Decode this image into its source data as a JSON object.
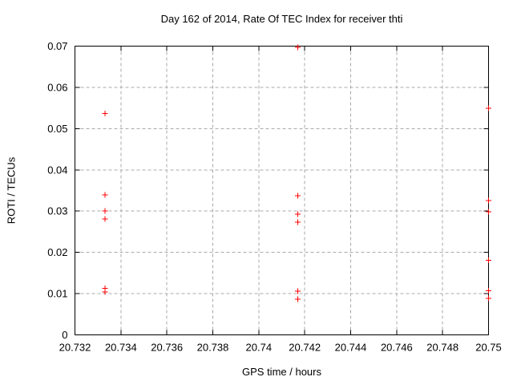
{
  "chart_data": {
    "type": "scatter",
    "title": "Day 162 of 2014, Rate Of TEC Index for receiver thti",
    "xlabel": "GPS time / hours",
    "ylabel": "ROTI / TECUs",
    "xlim": [
      20.732,
      20.75
    ],
    "ylim": [
      0,
      0.07
    ],
    "xticks": {
      "values": [
        20.732,
        20.734,
        20.736,
        20.738,
        20.74,
        20.742,
        20.744,
        20.746,
        20.748,
        20.75
      ],
      "labels": [
        "20.732",
        "20.734",
        "20.736",
        "20.738",
        "20.74",
        "20.742",
        "20.744",
        "20.746",
        "20.748",
        "20.75"
      ]
    },
    "yticks": {
      "values": [
        0,
        0.01,
        0.02,
        0.03,
        0.04,
        0.05,
        0.06,
        0.07
      ],
      "labels": [
        "0",
        "0.01",
        "0.02",
        "0.03",
        "0.04",
        "0.05",
        "0.06",
        "0.07"
      ]
    },
    "grid": {
      "visible": true,
      "style": "dashed",
      "color": "#aaaaaa"
    },
    "legend_position": "none",
    "marker": {
      "shape": "plus",
      "size": 7,
      "color": "#ff0000"
    },
    "axis_color": "#000000",
    "background": "#ffffff",
    "series": [
      {
        "name": "ROTI",
        "points": [
          [
            20.7333,
            0.0537
          ],
          [
            20.7333,
            0.0339
          ],
          [
            20.7333,
            0.03
          ],
          [
            20.7333,
            0.0281
          ],
          [
            20.7333,
            0.0113
          ],
          [
            20.7333,
            0.0104
          ],
          [
            20.7417,
            0.0697
          ],
          [
            20.7417,
            0.0337
          ],
          [
            20.7417,
            0.0293
          ],
          [
            20.7417,
            0.0273
          ],
          [
            20.7417,
            0.0106
          ],
          [
            20.7417,
            0.0087
          ],
          [
            20.75,
            0.0549
          ],
          [
            20.75,
            0.0326
          ],
          [
            20.75,
            0.0298
          ],
          [
            20.75,
            0.0181
          ],
          [
            20.75,
            0.0107
          ],
          [
            20.75,
            0.0088
          ]
        ]
      }
    ]
  }
}
